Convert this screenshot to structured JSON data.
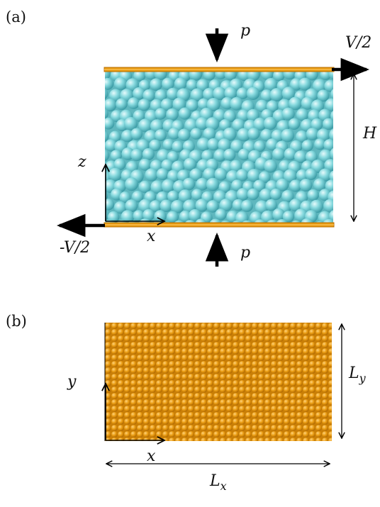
{
  "panel_a": {
    "label": "(a)",
    "pressure_top": "p",
    "pressure_bottom": "p",
    "velocity_top": "V/2",
    "velocity_bottom": "-V/2",
    "height": "H",
    "axis_vertical": "z",
    "axis_horizontal": "x"
  },
  "panel_b": {
    "label": "(b)",
    "axis_vertical": "y",
    "axis_horizontal": "x",
    "width_label": "L",
    "width_sub": "x",
    "height_label": "L",
    "height_sub": "y"
  },
  "colors": {
    "wall": "#e89a10",
    "wall_dark": "#b86e00",
    "particle": "#86d9de",
    "particle_light": "#dff7f8",
    "particle_dark": "#3fa4ad",
    "ink": "#000000"
  }
}
